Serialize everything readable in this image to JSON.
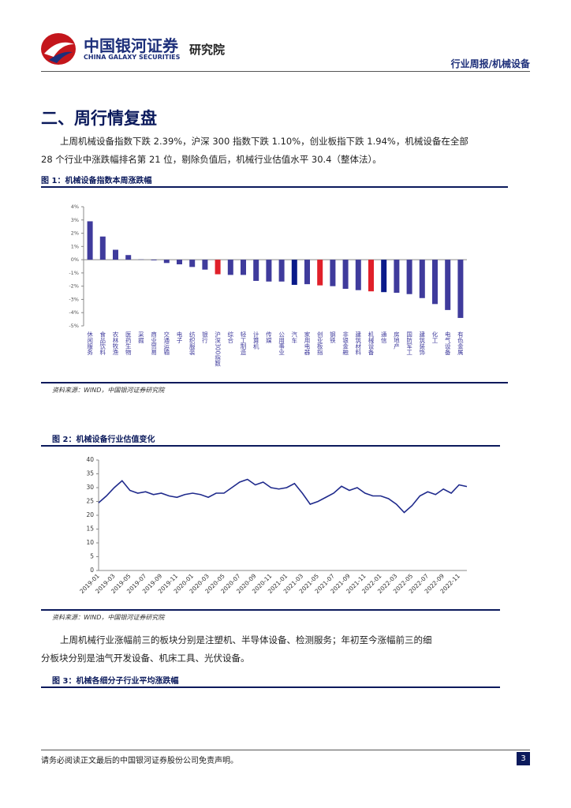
{
  "header": {
    "logo_cn": "中国银河证券",
    "logo_en": "CHINA GALAXY SECURITIES",
    "dept": "研究院",
    "report_type": "行业周报/机械设备"
  },
  "section": {
    "title": "二、周行情复盘",
    "paragraph": "上周机械设备指数下跌 2.39%，沪深 300 指数下跌 1.10%，创业板指下跌 1.94%，机械设备在全部 28 个行业中涨跌幅排名第 21 位，剔除负值后，机械行业估值水平 30.4（整体法）。"
  },
  "figures": [
    {
      "caption": "图 1：机械设备指数本周涨跌幅",
      "source": "资料来源：WIND，中国银河证券研究院",
      "chart_data": {
        "type": "bar",
        "categories": [
          "休闲服务",
          "食品饮料",
          "农林牧渔",
          "医药生物",
          "采掘",
          "商业贸易",
          "交通运输",
          "电子",
          "纺织服装",
          "银行",
          "沪深300指数",
          "综合",
          "轻工制造",
          "计算机",
          "传媒",
          "公用事业",
          "汽车",
          "家用电器",
          "创业板指",
          "钢铁",
          "非银金融",
          "建筑材料",
          "机械设备",
          "通信",
          "房地产",
          "国防军工",
          "建筑装饰",
          "化工",
          "电气设备",
          "有色金属"
        ],
        "values": [
          2.9,
          1.75,
          0.75,
          0.35,
          0.02,
          -0.05,
          -0.25,
          -0.35,
          -0.55,
          -0.75,
          -1.1,
          -1.15,
          -1.15,
          -1.6,
          -1.65,
          -1.65,
          -1.9,
          -1.85,
          -1.94,
          -2.0,
          -2.2,
          -2.3,
          -2.39,
          -2.45,
          -2.5,
          -2.6,
          -2.9,
          -3.35,
          -3.8,
          -4.4
        ],
        "colors": [
          "#3f3b9c",
          "#3f3b9c",
          "#3f3b9c",
          "#3f3b9c",
          "#3f3b9c",
          "#3f3b9c",
          "#3f3b9c",
          "#3f3b9c",
          "#3f3b9c",
          "#3f3b9c",
          "#e0202a",
          "#3f3b9c",
          "#3f3b9c",
          "#3f3b9c",
          "#3f3b9c",
          "#3f3b9c",
          "#0a1a8a",
          "#3f3b9c",
          "#e0202a",
          "#3f3b9c",
          "#3f3b9c",
          "#3f3b9c",
          "#e0202a",
          "#0a1a8a",
          "#3f3b9c",
          "#3f3b9c",
          "#3f3b9c",
          "#3f3b9c",
          "#3f3b9c",
          "#3f3b9c"
        ],
        "ylim": [
          -5,
          4
        ],
        "yticks": [
          {
            "value": -5,
            "label": "-5%"
          },
          {
            "value": -4,
            "label": "-4%"
          },
          {
            "value": -3,
            "label": "-3%"
          },
          {
            "value": -2,
            "label": "-2%"
          },
          {
            "value": -1,
            "label": "-1%"
          },
          {
            "value": 0,
            "label": "0%"
          },
          {
            "value": 1,
            "label": "1%"
          },
          {
            "value": 2,
            "label": "2%"
          },
          {
            "value": 3,
            "label": "3%"
          },
          {
            "value": 4,
            "label": "4%"
          }
        ]
      }
    },
    {
      "caption": "图 2：机械设备行业估值变化",
      "source": "资料来源：WIND，中国银河证券研究院",
      "chart_data": {
        "type": "line",
        "x": [
          "2019-01",
          "2019-02",
          "2019-03",
          "2019-04",
          "2019-05",
          "2019-06",
          "2019-07",
          "2019-08",
          "2019-09",
          "2019-10",
          "2019-11",
          "2019-12",
          "2020-01",
          "2020-02",
          "2020-03",
          "2020-04",
          "2020-05",
          "2020-06",
          "2020-07",
          "2020-08",
          "2020-09",
          "2020-10",
          "2020-11",
          "2020-12",
          "2021-01",
          "2021-02",
          "2021-03",
          "2021-04",
          "2021-05",
          "2021-06",
          "2021-07",
          "2021-08",
          "2021-09",
          "2021-10",
          "2021-11",
          "2021-12",
          "2022-01",
          "2022-02",
          "2022-03",
          "2022-04",
          "2022-05",
          "2022-06",
          "2022-07",
          "2022-08",
          "2022-09",
          "2022-10",
          "2022-11",
          "2022-12"
        ],
        "series": [
          {
            "color": "#1f2a8c",
            "values": [
              24.5,
              27,
              30,
              32.5,
              29,
              28,
              28.5,
              27.5,
              28,
              27,
              26.5,
              27.5,
              28,
              27.5,
              26.5,
              28,
              28,
              30,
              32,
              33,
              31,
              32,
              30,
              29.5,
              30,
              31.5,
              28,
              24,
              25,
              26.5,
              28,
              30.5,
              29,
              30,
              28,
              27,
              27,
              26,
              24,
              21,
              23.5,
              27,
              28.5,
              27.5,
              29.5,
              28,
              31,
              30.4
            ]
          }
        ],
        "ylim": [
          0,
          40
        ],
        "yticks": [
          0,
          5,
          10,
          15,
          20,
          25,
          30,
          35,
          40
        ]
      }
    }
  ],
  "paragraph_2": "上周机械行业涨幅前三的板块分别是注塑机、半导体设备、检测服务；年初至今涨幅前三的细分板块分别是油气开发设备、机床工具、光伏设备。",
  "figure_3": {
    "caption": "图 3：机械各细分子行业平均涨跌幅"
  },
  "footer": {
    "disclaimer": "请务必阅读正文最后的中国银河证券股份公司免责声明。",
    "page": 3
  }
}
